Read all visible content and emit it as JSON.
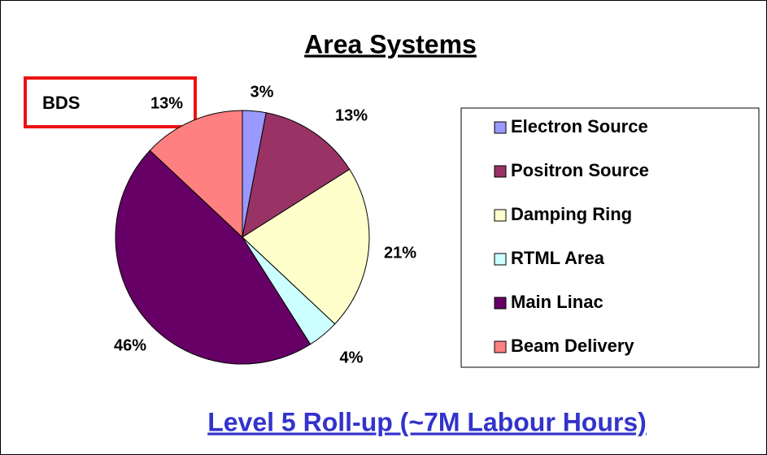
{
  "chart_data": {
    "type": "pie",
    "title": "Area Systems",
    "subtitle": "Level 5 Roll-up (~7M Labour Hours)",
    "annotation": "BDS",
    "categories": [
      "Electron Source",
      "Positron Source",
      "Damping Ring",
      "RTML Area",
      "Main Linac",
      "Beam Delivery"
    ],
    "values": [
      3,
      13,
      21,
      4,
      46,
      13
    ],
    "value_labels": [
      "3%",
      "13%",
      "21%",
      "4%",
      "46%",
      "13%"
    ],
    "colors": [
      "#9999ff",
      "#993366",
      "#ffffcc",
      "#ccffff",
      "#660066",
      "#ff8080"
    ],
    "legend": "right"
  }
}
